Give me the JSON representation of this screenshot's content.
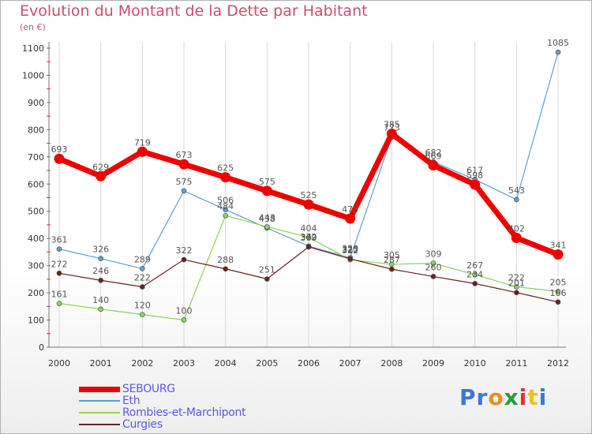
{
  "chart_data": {
    "type": "line",
    "title": "Evolution du Montant de la Dette par Habitant",
    "subtitle": "(en €)",
    "x": [
      "2000",
      "2001",
      "2002",
      "2003",
      "2004",
      "2005",
      "2006",
      "2007",
      "2008",
      "2009",
      "2010",
      "2011",
      "2012"
    ],
    "yticks": [
      "0",
      "100",
      "200",
      "300",
      "400",
      "500",
      "600",
      "700",
      "800",
      "900",
      "1000",
      "1100"
    ],
    "ylim": [
      0,
      1100
    ],
    "grid": "vertical",
    "legend_position": "bottom-left",
    "series": [
      {
        "name": "SEBOURG",
        "color": "#ee0000",
        "width": 7,
        "values": [
          693,
          629,
          719,
          673,
          625,
          575,
          525,
          473,
          785,
          669,
          598,
          402,
          341
        ]
      },
      {
        "name": "Eth",
        "color": "#5e9fd3",
        "width": 1.2,
        "values": [
          361,
          326,
          289,
          575,
          506,
          438,
          372,
          329,
          773,
          682,
          617,
          543,
          1085
        ]
      },
      {
        "name": "Rombies-et-Marchipont",
        "color": "#8fd45a",
        "width": 1.2,
        "values": [
          161,
          140,
          120,
          100,
          484,
          443,
          404,
          322,
          305,
          309,
          267,
          222,
          205
        ]
      },
      {
        "name": "Curgies",
        "color": "#6b2222",
        "width": 1.2,
        "values": [
          272,
          246,
          222,
          322,
          288,
          251,
          369,
          325,
          287,
          260,
          234,
          201,
          166
        ]
      }
    ]
  },
  "logo": {
    "text": "Proxiti",
    "colors": [
      "#3a78d0",
      "#3a78d0",
      "#f08a24",
      "#2a9c3a",
      "#e03030",
      "#f0c020",
      "#3a78d0"
    ]
  }
}
